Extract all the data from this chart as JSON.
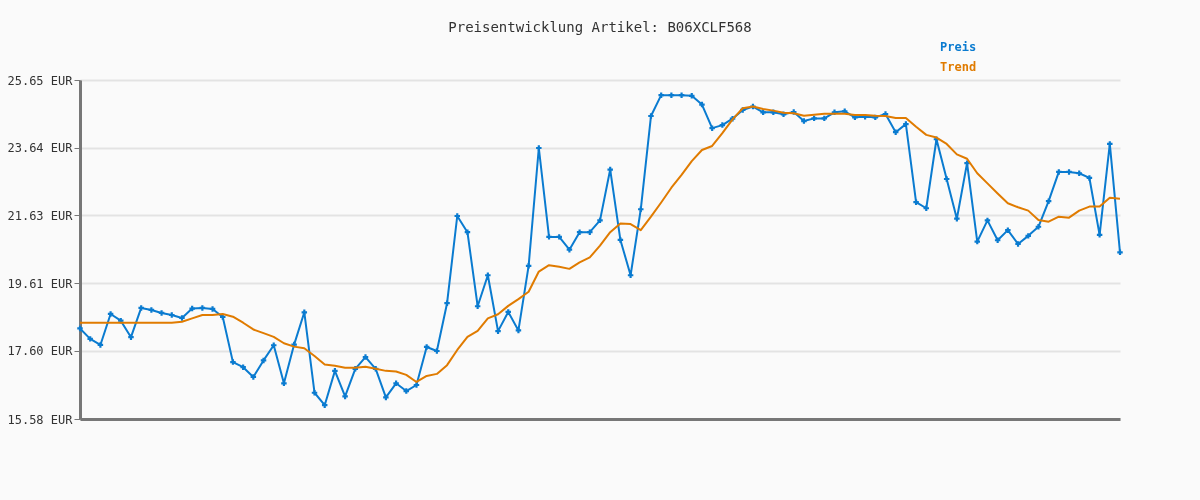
{
  "chart_data": {
    "type": "line",
    "title": "Preisentwicklung Artikel: B06XCLF568",
    "categories": [
      null,
      null,
      null,
      null,
      null,
      null,
      null,
      null,
      null,
      null,
      null,
      null,
      null,
      null,
      null,
      null,
      null,
      null,
      null,
      null,
      null,
      null,
      null,
      null,
      null,
      null,
      null,
      null,
      null,
      null,
      null,
      null,
      null,
      null,
      null,
      null,
      null,
      null,
      null,
      null,
      null,
      null,
      null,
      null,
      null,
      null,
      null,
      null,
      null,
      null,
      null,
      null,
      null,
      null,
      null,
      null,
      null,
      null,
      null,
      null,
      null,
      null,
      null,
      null,
      null,
      null,
      null,
      null,
      null,
      null,
      null,
      null,
      null,
      null,
      null,
      null,
      null,
      null,
      null,
      null,
      null,
      null,
      null,
      null,
      null,
      null,
      null,
      null,
      null,
      null,
      null,
      null,
      null,
      null,
      null,
      null,
      null,
      null,
      null,
      null,
      null,
      null,
      null
    ],
    "series": [
      {
        "name": "Preis",
        "color": "#0a7bd0",
        "marker": "cross",
        "values": [
          18.27,
          17.96,
          17.78,
          18.7,
          18.5,
          18.01,
          18.88,
          18.82,
          18.73,
          18.67,
          18.58,
          18.86,
          18.88,
          18.85,
          18.61,
          17.27,
          17.12,
          16.83,
          17.32,
          17.77,
          16.64,
          17.79,
          18.75,
          16.36,
          15.99,
          17.01,
          16.25,
          17.07,
          17.42,
          17.07,
          16.22,
          16.64,
          16.41,
          16.59,
          17.72,
          17.6,
          19.02,
          21.61,
          21.13,
          18.93,
          19.85,
          18.19,
          18.76,
          18.21,
          20.13,
          23.63,
          20.99,
          20.99,
          20.61,
          21.13,
          21.13,
          21.48,
          22.99,
          20.9,
          19.85,
          21.81,
          24.58,
          25.2,
          25.2,
          25.2,
          25.18,
          24.92,
          24.22,
          24.31,
          24.5,
          24.76,
          24.86,
          24.69,
          24.69,
          24.63,
          24.7,
          24.43,
          24.51,
          24.51,
          24.69,
          24.72,
          24.54,
          24.56,
          24.54,
          24.64,
          24.1,
          24.34,
          22.02,
          21.84,
          23.89,
          22.71,
          21.53,
          23.18,
          20.85,
          21.48,
          20.89,
          21.19,
          20.78,
          21.02,
          21.29,
          22.05,
          22.92,
          22.92,
          22.88,
          22.74,
          21.05,
          23.75,
          20.53
        ]
      },
      {
        "name": "Trend",
        "color": "#e07b00",
        "marker": "none",
        "values": [
          18.44,
          18.44,
          18.44,
          18.44,
          18.44,
          18.44,
          18.44,
          18.44,
          18.44,
          18.44,
          18.47,
          18.57,
          18.67,
          18.67,
          18.7,
          18.62,
          18.44,
          18.24,
          18.13,
          18.02,
          17.83,
          17.73,
          17.68,
          17.45,
          17.2,
          17.16,
          17.1,
          17.1,
          17.13,
          17.07,
          17.01,
          16.99,
          16.89,
          16.68,
          16.86,
          16.92,
          17.18,
          17.63,
          18.02,
          18.2,
          18.57,
          18.69,
          18.94,
          19.14,
          19.36,
          19.96,
          20.15,
          20.1,
          20.04,
          20.23,
          20.38,
          20.73,
          21.13,
          21.39,
          21.37,
          21.19,
          21.59,
          22.01,
          22.45,
          22.83,
          23.24,
          23.57,
          23.69,
          24.07,
          24.48,
          24.81,
          24.86,
          24.79,
          24.74,
          24.68,
          24.66,
          24.59,
          24.62,
          24.65,
          24.65,
          24.65,
          24.61,
          24.61,
          24.59,
          24.58,
          24.52,
          24.52,
          24.26,
          24.02,
          23.94,
          23.75,
          23.44,
          23.31,
          22.88,
          22.58,
          22.28,
          21.99,
          21.87,
          21.77,
          21.49,
          21.44,
          21.59,
          21.56,
          21.77,
          21.89,
          21.89,
          22.15,
          22.12
        ]
      }
    ],
    "ylim": [
      15.58,
      25.65
    ],
    "yticks": [
      {
        "value": 15.58,
        "label": "15.58 EUR"
      },
      {
        "value": 17.6,
        "label": "17.60 EUR"
      },
      {
        "value": 19.61,
        "label": "19.61 EUR"
      },
      {
        "value": 21.63,
        "label": "21.63 EUR"
      },
      {
        "value": 23.64,
        "label": "23.64 EUR"
      },
      {
        "value": 25.65,
        "label": "25.65 EUR"
      }
    ],
    "grid": "y",
    "legend": "top right",
    "tick_labels": "y",
    "line_style": "solid"
  }
}
